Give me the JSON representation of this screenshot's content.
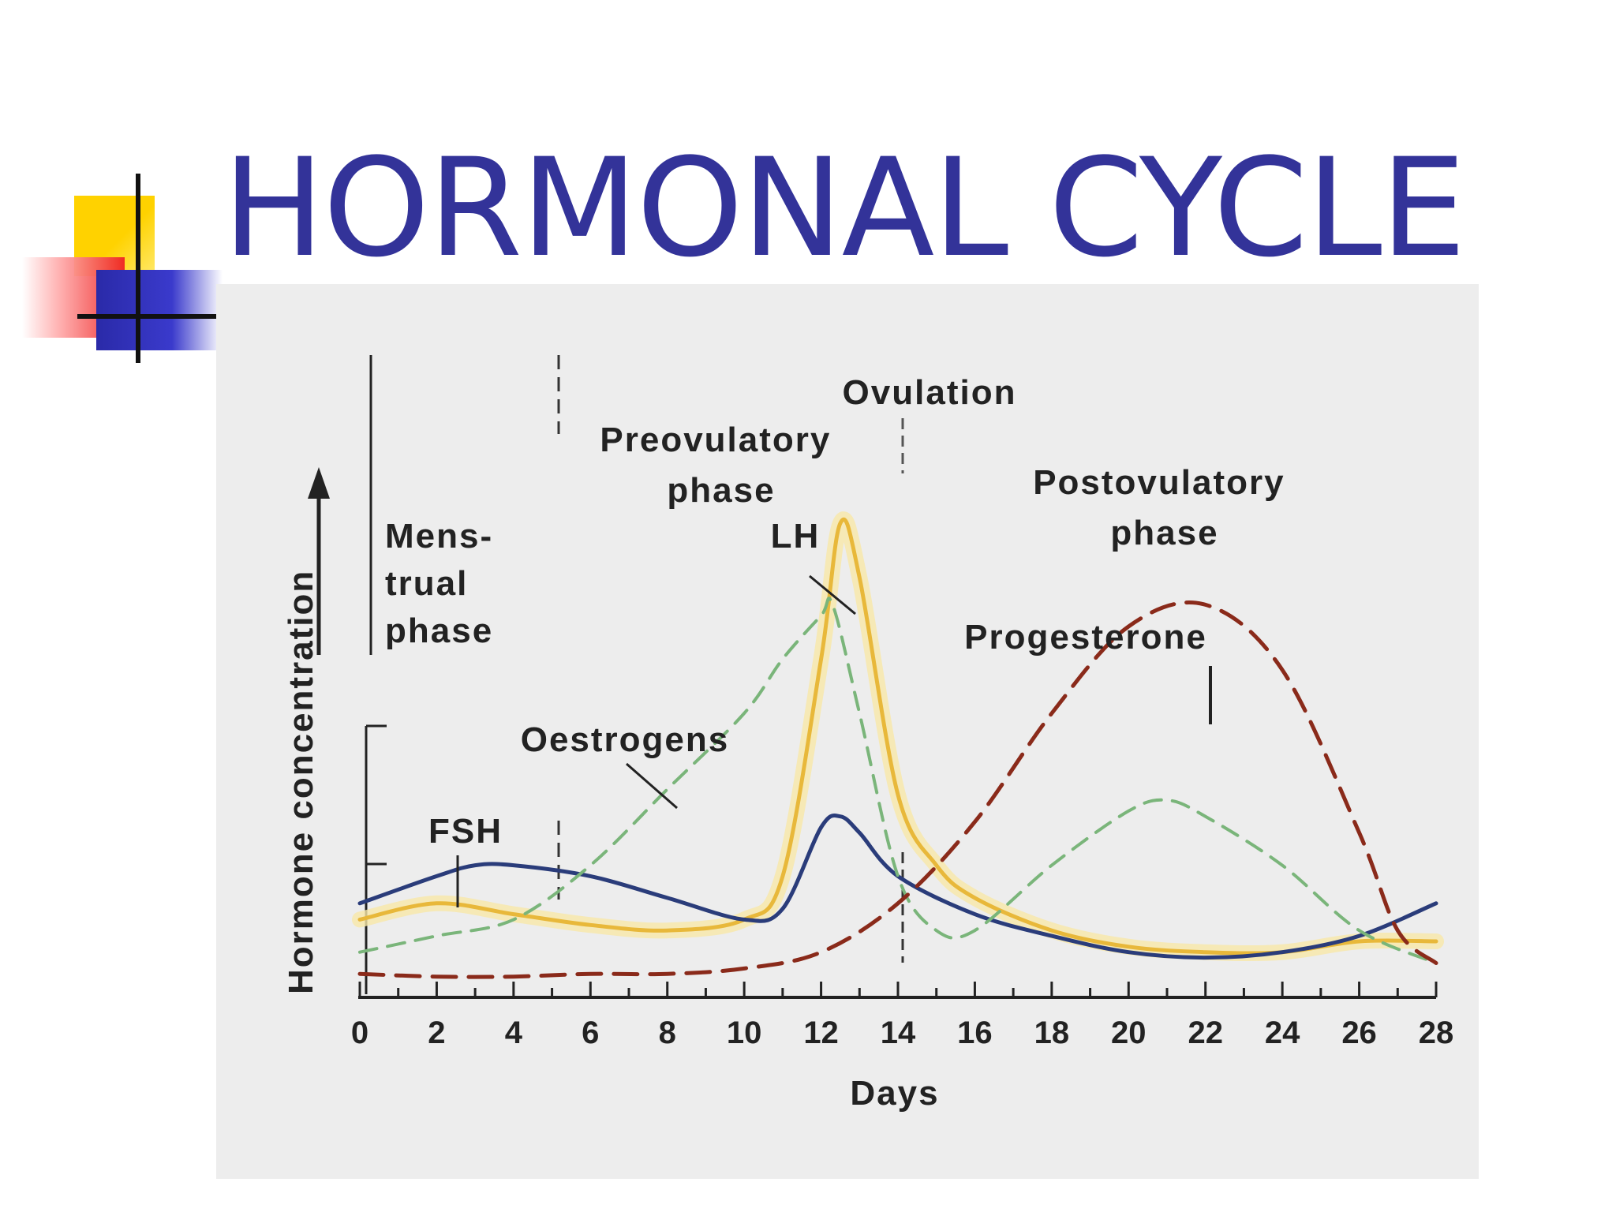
{
  "slide": {
    "title": "HORMONAL CYCLE"
  },
  "chart_data": {
    "type": "line",
    "title": "",
    "xlabel": "Days",
    "ylabel": "Hormone concentration",
    "xlim": [
      0,
      28
    ],
    "ylim": [
      0,
      10
    ],
    "x_ticks": [
      "0",
      "2",
      "4",
      "6",
      "8",
      "10",
      "12",
      "14",
      "16",
      "18",
      "20",
      "22",
      "24",
      "26",
      "28"
    ],
    "phases": [
      {
        "name": "Mens-\ntrual\nphase",
        "start": 0,
        "end": 5
      },
      {
        "name": "Preovulatory\nphase",
        "start": 5,
        "end": 14
      },
      {
        "name": "Postovulatory\nphase",
        "start": 14,
        "end": 28
      }
    ],
    "annotations": [
      "Ovulation"
    ],
    "series": [
      {
        "name": "LH",
        "color": "#e8b83a",
        "x": [
          0,
          2,
          4,
          6,
          8,
          10,
          11,
          12,
          12.5,
          13,
          14,
          15,
          16,
          18,
          20,
          22,
          24,
          26,
          28
        ],
        "y": [
          1.2,
          1.5,
          1.3,
          1.1,
          1.0,
          1.2,
          2.0,
          6.0,
          8.5,
          7.5,
          3.5,
          2.2,
          1.6,
          1.0,
          0.7,
          0.6,
          0.6,
          0.8,
          0.8
        ]
      },
      {
        "name": "FSH",
        "color": "#2a3c7a",
        "x": [
          0,
          2,
          3,
          4,
          6,
          8,
          10,
          11,
          12,
          12.5,
          13,
          14,
          16,
          18,
          20,
          22,
          24,
          26,
          28
        ],
        "y": [
          1.5,
          2.0,
          2.2,
          2.2,
          2.0,
          1.6,
          1.2,
          1.4,
          2.9,
          3.1,
          2.8,
          2.0,
          1.3,
          0.9,
          0.6,
          0.5,
          0.6,
          0.9,
          1.5
        ]
      },
      {
        "name": "Oestrogens",
        "color": "#7ab57a",
        "x": [
          0,
          2,
          4,
          6,
          8,
          10,
          11,
          12,
          12.3,
          13,
          14,
          15,
          16,
          18,
          20,
          21,
          22,
          24,
          26,
          28
        ],
        "y": [
          0.6,
          0.9,
          1.2,
          2.2,
          3.6,
          5.0,
          6.0,
          6.8,
          7.0,
          5.0,
          2.0,
          1.0,
          1.0,
          2.2,
          3.2,
          3.4,
          3.1,
          2.2,
          1.0,
          0.4
        ]
      },
      {
        "name": "Progesterone",
        "color": "#8a2a1a",
        "x": [
          0,
          2,
          4,
          6,
          8,
          10,
          12,
          14,
          16,
          18,
          20,
          22,
          24,
          26,
          27,
          28
        ],
        "y": [
          0.2,
          0.15,
          0.15,
          0.2,
          0.2,
          0.3,
          0.6,
          1.5,
          3.0,
          5.0,
          6.6,
          7.0,
          5.8,
          2.8,
          1.0,
          0.4
        ]
      }
    ]
  }
}
